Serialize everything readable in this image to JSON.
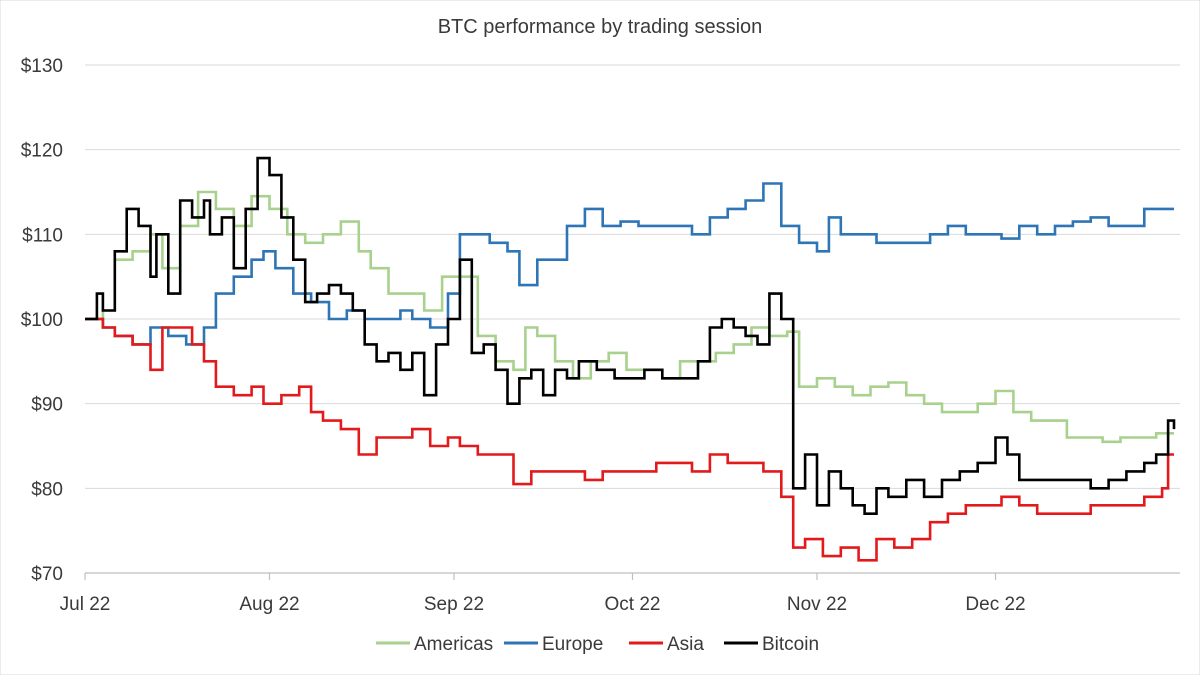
{
  "chart_data": {
    "type": "line",
    "title": "BTC performance by trading session",
    "xlabel": "",
    "ylabel": "",
    "y_tick_labels": [
      "$70",
      "$80",
      "$90",
      "$100",
      "$110",
      "$120",
      "$130"
    ],
    "y_ticks": [
      70,
      80,
      90,
      100,
      110,
      120,
      130
    ],
    "ylim": [
      70,
      130
    ],
    "x_tick_labels": [
      "Jul 22",
      "Aug 22",
      "Sep 22",
      "Oct 22",
      "Nov 22",
      "Dec 22"
    ],
    "x_ticks": [
      "2022-07-01",
      "2022-08-01",
      "2022-09-01",
      "2022-10-01",
      "2022-11-01",
      "2022-12-01"
    ],
    "xlim": [
      "2022-07-01",
      "2022-12-31"
    ],
    "grid": "horizontal",
    "legend_position": "bottom",
    "series": [
      {
        "name": "Americas",
        "color": "#a9d18e",
        "points": [
          [
            "2022-07-01",
            100
          ],
          [
            "2022-07-04",
            101
          ],
          [
            "2022-07-06",
            107
          ],
          [
            "2022-07-09",
            108
          ],
          [
            "2022-07-12",
            110
          ],
          [
            "2022-07-14",
            106
          ],
          [
            "2022-07-17",
            111
          ],
          [
            "2022-07-20",
            115
          ],
          [
            "2022-07-23",
            113
          ],
          [
            "2022-07-26",
            111
          ],
          [
            "2022-07-29",
            114.5
          ],
          [
            "2022-08-01",
            113
          ],
          [
            "2022-08-04",
            110
          ],
          [
            "2022-08-07",
            109
          ],
          [
            "2022-08-10",
            110
          ],
          [
            "2022-08-13",
            111.5
          ],
          [
            "2022-08-16",
            108
          ],
          [
            "2022-08-18",
            106
          ],
          [
            "2022-08-21",
            103
          ],
          [
            "2022-08-24",
            103
          ],
          [
            "2022-08-27",
            101
          ],
          [
            "2022-08-30",
            105
          ],
          [
            "2022-09-02",
            105
          ],
          [
            "2022-09-05",
            98
          ],
          [
            "2022-09-08",
            95
          ],
          [
            "2022-09-11",
            94
          ],
          [
            "2022-09-13",
            99
          ],
          [
            "2022-09-15",
            98
          ],
          [
            "2022-09-18",
            95
          ],
          [
            "2022-09-21",
            93
          ],
          [
            "2022-09-24",
            95
          ],
          [
            "2022-09-27",
            96
          ],
          [
            "2022-09-30",
            94
          ],
          [
            "2022-10-03",
            94
          ],
          [
            "2022-10-06",
            93
          ],
          [
            "2022-10-09",
            95
          ],
          [
            "2022-10-12",
            95
          ],
          [
            "2022-10-15",
            96
          ],
          [
            "2022-10-18",
            97
          ],
          [
            "2022-10-21",
            99
          ],
          [
            "2022-10-24",
            98
          ],
          [
            "2022-10-27",
            98.5
          ],
          [
            "2022-10-29",
            92
          ],
          [
            "2022-11-01",
            93
          ],
          [
            "2022-11-04",
            92
          ],
          [
            "2022-11-07",
            91
          ],
          [
            "2022-11-10",
            92
          ],
          [
            "2022-11-13",
            92.5
          ],
          [
            "2022-11-16",
            91
          ],
          [
            "2022-11-19",
            90
          ],
          [
            "2022-11-22",
            89
          ],
          [
            "2022-11-25",
            89
          ],
          [
            "2022-11-28",
            90
          ],
          [
            "2022-12-01",
            91.5
          ],
          [
            "2022-12-04",
            89
          ],
          [
            "2022-12-07",
            88
          ],
          [
            "2022-12-10",
            88
          ],
          [
            "2022-12-13",
            86
          ],
          [
            "2022-12-16",
            86
          ],
          [
            "2022-12-19",
            85.5
          ],
          [
            "2022-12-22",
            86
          ],
          [
            "2022-12-25",
            86
          ],
          [
            "2022-12-28",
            86.5
          ],
          [
            "2022-12-31",
            86.5
          ]
        ]
      },
      {
        "name": "Europe",
        "color": "#2e75b6",
        "points": [
          [
            "2022-07-01",
            100
          ],
          [
            "2022-07-04",
            99
          ],
          [
            "2022-07-06",
            98
          ],
          [
            "2022-07-09",
            97
          ],
          [
            "2022-07-12",
            99
          ],
          [
            "2022-07-15",
            98
          ],
          [
            "2022-07-18",
            97
          ],
          [
            "2022-07-21",
            99
          ],
          [
            "2022-07-23",
            103
          ],
          [
            "2022-07-26",
            105
          ],
          [
            "2022-07-29",
            107
          ],
          [
            "2022-07-31",
            108
          ],
          [
            "2022-08-02",
            106
          ],
          [
            "2022-08-05",
            103
          ],
          [
            "2022-08-08",
            102
          ],
          [
            "2022-08-11",
            100
          ],
          [
            "2022-08-14",
            101
          ],
          [
            "2022-08-17",
            100
          ],
          [
            "2022-08-20",
            100
          ],
          [
            "2022-08-23",
            101
          ],
          [
            "2022-08-25",
            100
          ],
          [
            "2022-08-28",
            99
          ],
          [
            "2022-08-31",
            103
          ],
          [
            "2022-09-02",
            110
          ],
          [
            "2022-09-05",
            110
          ],
          [
            "2022-09-07",
            109
          ],
          [
            "2022-09-10",
            108
          ],
          [
            "2022-09-12",
            104
          ],
          [
            "2022-09-15",
            107
          ],
          [
            "2022-09-18",
            107
          ],
          [
            "2022-09-20",
            111
          ],
          [
            "2022-09-23",
            113
          ],
          [
            "2022-09-26",
            111
          ],
          [
            "2022-09-29",
            111.5
          ],
          [
            "2022-10-02",
            111
          ],
          [
            "2022-10-05",
            111
          ],
          [
            "2022-10-08",
            111
          ],
          [
            "2022-10-11",
            110
          ],
          [
            "2022-10-14",
            112
          ],
          [
            "2022-10-17",
            113
          ],
          [
            "2022-10-20",
            114
          ],
          [
            "2022-10-23",
            116
          ],
          [
            "2022-10-26",
            111
          ],
          [
            "2022-10-29",
            109
          ],
          [
            "2022-11-01",
            108
          ],
          [
            "2022-11-03",
            112
          ],
          [
            "2022-11-05",
            110
          ],
          [
            "2022-11-08",
            110
          ],
          [
            "2022-11-11",
            109
          ],
          [
            "2022-11-14",
            109
          ],
          [
            "2022-11-17",
            109
          ],
          [
            "2022-11-20",
            110
          ],
          [
            "2022-11-23",
            111
          ],
          [
            "2022-11-26",
            110
          ],
          [
            "2022-11-29",
            110
          ],
          [
            "2022-12-02",
            109.5
          ],
          [
            "2022-12-05",
            111
          ],
          [
            "2022-12-08",
            110
          ],
          [
            "2022-12-11",
            111
          ],
          [
            "2022-12-14",
            111.5
          ],
          [
            "2022-12-17",
            112
          ],
          [
            "2022-12-20",
            111
          ],
          [
            "2022-12-23",
            111
          ],
          [
            "2022-12-26",
            113
          ],
          [
            "2022-12-29",
            113
          ],
          [
            "2022-12-31",
            113
          ]
        ]
      },
      {
        "name": "Asia",
        "color": "#e31a1c",
        "points": [
          [
            "2022-07-01",
            100
          ],
          [
            "2022-07-04",
            99
          ],
          [
            "2022-07-06",
            98
          ],
          [
            "2022-07-09",
            97
          ],
          [
            "2022-07-12",
            94
          ],
          [
            "2022-07-14",
            99
          ],
          [
            "2022-07-17",
            99
          ],
          [
            "2022-07-19",
            97
          ],
          [
            "2022-07-21",
            95
          ],
          [
            "2022-07-23",
            92
          ],
          [
            "2022-07-26",
            91
          ],
          [
            "2022-07-29",
            92
          ],
          [
            "2022-07-31",
            90
          ],
          [
            "2022-08-03",
            91
          ],
          [
            "2022-08-06",
            92
          ],
          [
            "2022-08-08",
            89
          ],
          [
            "2022-08-10",
            88
          ],
          [
            "2022-08-13",
            87
          ],
          [
            "2022-08-16",
            84
          ],
          [
            "2022-08-19",
            86
          ],
          [
            "2022-08-22",
            86
          ],
          [
            "2022-08-25",
            87
          ],
          [
            "2022-08-28",
            85
          ],
          [
            "2022-08-31",
            86
          ],
          [
            "2022-09-02",
            85
          ],
          [
            "2022-09-05",
            84
          ],
          [
            "2022-09-08",
            84
          ],
          [
            "2022-09-11",
            80.5
          ],
          [
            "2022-09-14",
            82
          ],
          [
            "2022-09-17",
            82
          ],
          [
            "2022-09-20",
            82
          ],
          [
            "2022-09-23",
            81
          ],
          [
            "2022-09-26",
            82
          ],
          [
            "2022-09-29",
            82
          ],
          [
            "2022-10-02",
            82
          ],
          [
            "2022-10-05",
            83
          ],
          [
            "2022-10-08",
            83
          ],
          [
            "2022-10-11",
            82
          ],
          [
            "2022-10-14",
            84
          ],
          [
            "2022-10-17",
            83
          ],
          [
            "2022-10-20",
            83
          ],
          [
            "2022-10-23",
            82
          ],
          [
            "2022-10-26",
            79
          ],
          [
            "2022-10-28",
            73
          ],
          [
            "2022-10-30",
            74
          ],
          [
            "2022-11-02",
            72
          ],
          [
            "2022-11-05",
            73
          ],
          [
            "2022-11-08",
            71.5
          ],
          [
            "2022-11-11",
            74
          ],
          [
            "2022-11-14",
            73
          ],
          [
            "2022-11-17",
            74
          ],
          [
            "2022-11-20",
            76
          ],
          [
            "2022-11-23",
            77
          ],
          [
            "2022-11-26",
            78
          ],
          [
            "2022-11-29",
            78
          ],
          [
            "2022-12-02",
            79
          ],
          [
            "2022-12-05",
            78
          ],
          [
            "2022-12-08",
            77
          ],
          [
            "2022-12-11",
            77
          ],
          [
            "2022-12-14",
            77
          ],
          [
            "2022-12-17",
            78
          ],
          [
            "2022-12-20",
            78
          ],
          [
            "2022-12-23",
            78
          ],
          [
            "2022-12-26",
            79
          ],
          [
            "2022-12-29",
            80
          ],
          [
            "2022-12-30",
            84
          ],
          [
            "2022-12-31",
            84
          ]
        ]
      },
      {
        "name": "Bitcoin",
        "color": "#000000",
        "points": [
          [
            "2022-07-01",
            100
          ],
          [
            "2022-07-03",
            103
          ],
          [
            "2022-07-04",
            101
          ],
          [
            "2022-07-06",
            108
          ],
          [
            "2022-07-08",
            113
          ],
          [
            "2022-07-10",
            111
          ],
          [
            "2022-07-12",
            105
          ],
          [
            "2022-07-13",
            110
          ],
          [
            "2022-07-15",
            103
          ],
          [
            "2022-07-17",
            114
          ],
          [
            "2022-07-19",
            112
          ],
          [
            "2022-07-21",
            114
          ],
          [
            "2022-07-22",
            110
          ],
          [
            "2022-07-24",
            112
          ],
          [
            "2022-07-26",
            106
          ],
          [
            "2022-07-28",
            113
          ],
          [
            "2022-07-30",
            119
          ],
          [
            "2022-08-01",
            117
          ],
          [
            "2022-08-03",
            112
          ],
          [
            "2022-08-05",
            107
          ],
          [
            "2022-08-07",
            102
          ],
          [
            "2022-08-09",
            103
          ],
          [
            "2022-08-11",
            104
          ],
          [
            "2022-08-13",
            103
          ],
          [
            "2022-08-15",
            101
          ],
          [
            "2022-08-17",
            97
          ],
          [
            "2022-08-19",
            95
          ],
          [
            "2022-08-21",
            96
          ],
          [
            "2022-08-23",
            94
          ],
          [
            "2022-08-25",
            96
          ],
          [
            "2022-08-27",
            91
          ],
          [
            "2022-08-29",
            97
          ],
          [
            "2022-08-31",
            100
          ],
          [
            "2022-09-02",
            107
          ],
          [
            "2022-09-04",
            96
          ],
          [
            "2022-09-06",
            97
          ],
          [
            "2022-09-08",
            94
          ],
          [
            "2022-09-10",
            90
          ],
          [
            "2022-09-12",
            93
          ],
          [
            "2022-09-14",
            94
          ],
          [
            "2022-09-16",
            91
          ],
          [
            "2022-09-18",
            94
          ],
          [
            "2022-09-20",
            93
          ],
          [
            "2022-09-22",
            95
          ],
          [
            "2022-09-25",
            94
          ],
          [
            "2022-09-28",
            93
          ],
          [
            "2022-09-30",
            93
          ],
          [
            "2022-10-03",
            94
          ],
          [
            "2022-10-06",
            93
          ],
          [
            "2022-10-09",
            93
          ],
          [
            "2022-10-12",
            95
          ],
          [
            "2022-10-14",
            99
          ],
          [
            "2022-10-16",
            100
          ],
          [
            "2022-10-18",
            99
          ],
          [
            "2022-10-20",
            98
          ],
          [
            "2022-10-22",
            97
          ],
          [
            "2022-10-24",
            103
          ],
          [
            "2022-10-26",
            100
          ],
          [
            "2022-10-28",
            80
          ],
          [
            "2022-10-30",
            84
          ],
          [
            "2022-11-01",
            78
          ],
          [
            "2022-11-03",
            82
          ],
          [
            "2022-11-05",
            80
          ],
          [
            "2022-11-07",
            78
          ],
          [
            "2022-11-09",
            77
          ],
          [
            "2022-11-11",
            80
          ],
          [
            "2022-11-13",
            79
          ],
          [
            "2022-11-16",
            81
          ],
          [
            "2022-11-19",
            79
          ],
          [
            "2022-11-22",
            81
          ],
          [
            "2022-11-25",
            82
          ],
          [
            "2022-11-28",
            83
          ],
          [
            "2022-12-01",
            86
          ],
          [
            "2022-12-03",
            84
          ],
          [
            "2022-12-05",
            81
          ],
          [
            "2022-12-08",
            81
          ],
          [
            "2022-12-11",
            81
          ],
          [
            "2022-12-14",
            81
          ],
          [
            "2022-12-17",
            80
          ],
          [
            "2022-12-20",
            81
          ],
          [
            "2022-12-23",
            82
          ],
          [
            "2022-12-26",
            83
          ],
          [
            "2022-12-28",
            84
          ],
          [
            "2022-12-30",
            88
          ],
          [
            "2022-12-31",
            87
          ]
        ]
      }
    ]
  }
}
